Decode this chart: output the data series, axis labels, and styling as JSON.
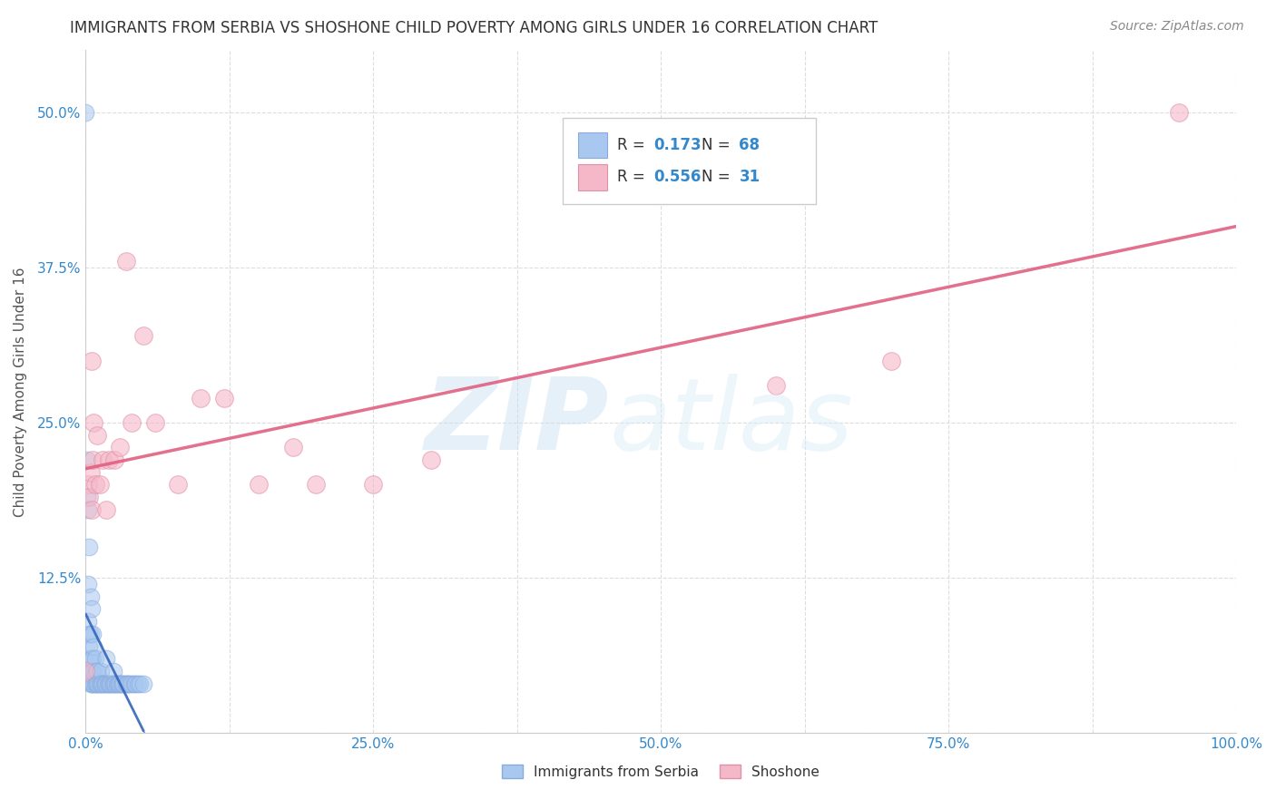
{
  "title": "IMMIGRANTS FROM SERBIA VS SHOSHONE CHILD POVERTY AMONG GIRLS UNDER 16 CORRELATION CHART",
  "source": "Source: ZipAtlas.com",
  "ylabel": "Child Poverty Among Girls Under 16",
  "r_serbia": 0.173,
  "n_serbia": 68,
  "r_shoshone": 0.556,
  "n_shoshone": 31,
  "serbia_color": "#a8c8f0",
  "serbia_edge_color": "#88aadd",
  "shoshone_color": "#f5b8c8",
  "shoshone_edge_color": "#e090a8",
  "serbia_line_color": "#3366bb",
  "shoshone_line_color": "#e06080",
  "title_color": "#333333",
  "source_color": "#888888",
  "axis_label_color": "#555555",
  "tick_color": "#3388cc",
  "grid_color": "#dddddd",
  "legend_text_color": "#3388cc",
  "legend_label_color": "#333333",
  "watermark_zip_color": "#b8d8f0",
  "watermark_atlas_color": "#d0e8f8",
  "serbia_x": [
    0.0,
    0.001,
    0.001,
    0.002,
    0.002,
    0.002,
    0.003,
    0.003,
    0.003,
    0.003,
    0.004,
    0.004,
    0.004,
    0.004,
    0.004,
    0.005,
    0.005,
    0.005,
    0.005,
    0.006,
    0.006,
    0.006,
    0.006,
    0.007,
    0.007,
    0.007,
    0.008,
    0.008,
    0.009,
    0.009,
    0.01,
    0.01,
    0.011,
    0.012,
    0.013,
    0.013,
    0.014,
    0.015,
    0.016,
    0.017,
    0.018,
    0.018,
    0.019,
    0.02,
    0.021,
    0.022,
    0.023,
    0.024,
    0.024,
    0.025,
    0.026,
    0.027,
    0.028,
    0.029,
    0.03,
    0.031,
    0.032,
    0.033,
    0.035,
    0.036,
    0.037,
    0.038,
    0.04,
    0.042,
    0.043,
    0.045,
    0.047,
    0.05
  ],
  "serbia_y": [
    0.5,
    0.19,
    0.22,
    0.09,
    0.12,
    0.18,
    0.05,
    0.07,
    0.08,
    0.15,
    0.04,
    0.05,
    0.06,
    0.08,
    0.11,
    0.04,
    0.05,
    0.06,
    0.1,
    0.04,
    0.05,
    0.06,
    0.08,
    0.04,
    0.05,
    0.07,
    0.04,
    0.06,
    0.04,
    0.05,
    0.04,
    0.05,
    0.04,
    0.04,
    0.04,
    0.05,
    0.04,
    0.04,
    0.04,
    0.04,
    0.04,
    0.06,
    0.04,
    0.04,
    0.04,
    0.04,
    0.04,
    0.04,
    0.05,
    0.04,
    0.04,
    0.04,
    0.04,
    0.04,
    0.04,
    0.04,
    0.04,
    0.04,
    0.04,
    0.04,
    0.04,
    0.04,
    0.04,
    0.04,
    0.04,
    0.04,
    0.04,
    0.04
  ],
  "shoshone_x": [
    0.0,
    0.002,
    0.003,
    0.004,
    0.005,
    0.005,
    0.006,
    0.007,
    0.008,
    0.01,
    0.012,
    0.015,
    0.018,
    0.02,
    0.025,
    0.03,
    0.035,
    0.04,
    0.05,
    0.06,
    0.08,
    0.1,
    0.12,
    0.15,
    0.18,
    0.2,
    0.25,
    0.3,
    0.6,
    0.7,
    0.95
  ],
  "shoshone_y": [
    0.05,
    0.2,
    0.19,
    0.21,
    0.18,
    0.3,
    0.22,
    0.25,
    0.2,
    0.24,
    0.2,
    0.22,
    0.18,
    0.22,
    0.22,
    0.23,
    0.38,
    0.25,
    0.32,
    0.25,
    0.2,
    0.27,
    0.27,
    0.2,
    0.23,
    0.2,
    0.2,
    0.22,
    0.28,
    0.3,
    0.5
  ],
  "xlim": [
    0.0,
    1.0
  ],
  "ylim": [
    0.0,
    0.55
  ],
  "xticks": [
    0.0,
    0.125,
    0.25,
    0.375,
    0.5,
    0.625,
    0.75,
    0.875,
    1.0
  ],
  "xticklabels": [
    "0.0%",
    "",
    "25.0%",
    "",
    "50.0%",
    "",
    "75.0%",
    "",
    "100.0%"
  ],
  "yticks": [
    0.0,
    0.125,
    0.25,
    0.375,
    0.5
  ],
  "yticklabels": [
    "",
    "12.5%",
    "25.0%",
    "37.5%",
    "50.0%"
  ]
}
